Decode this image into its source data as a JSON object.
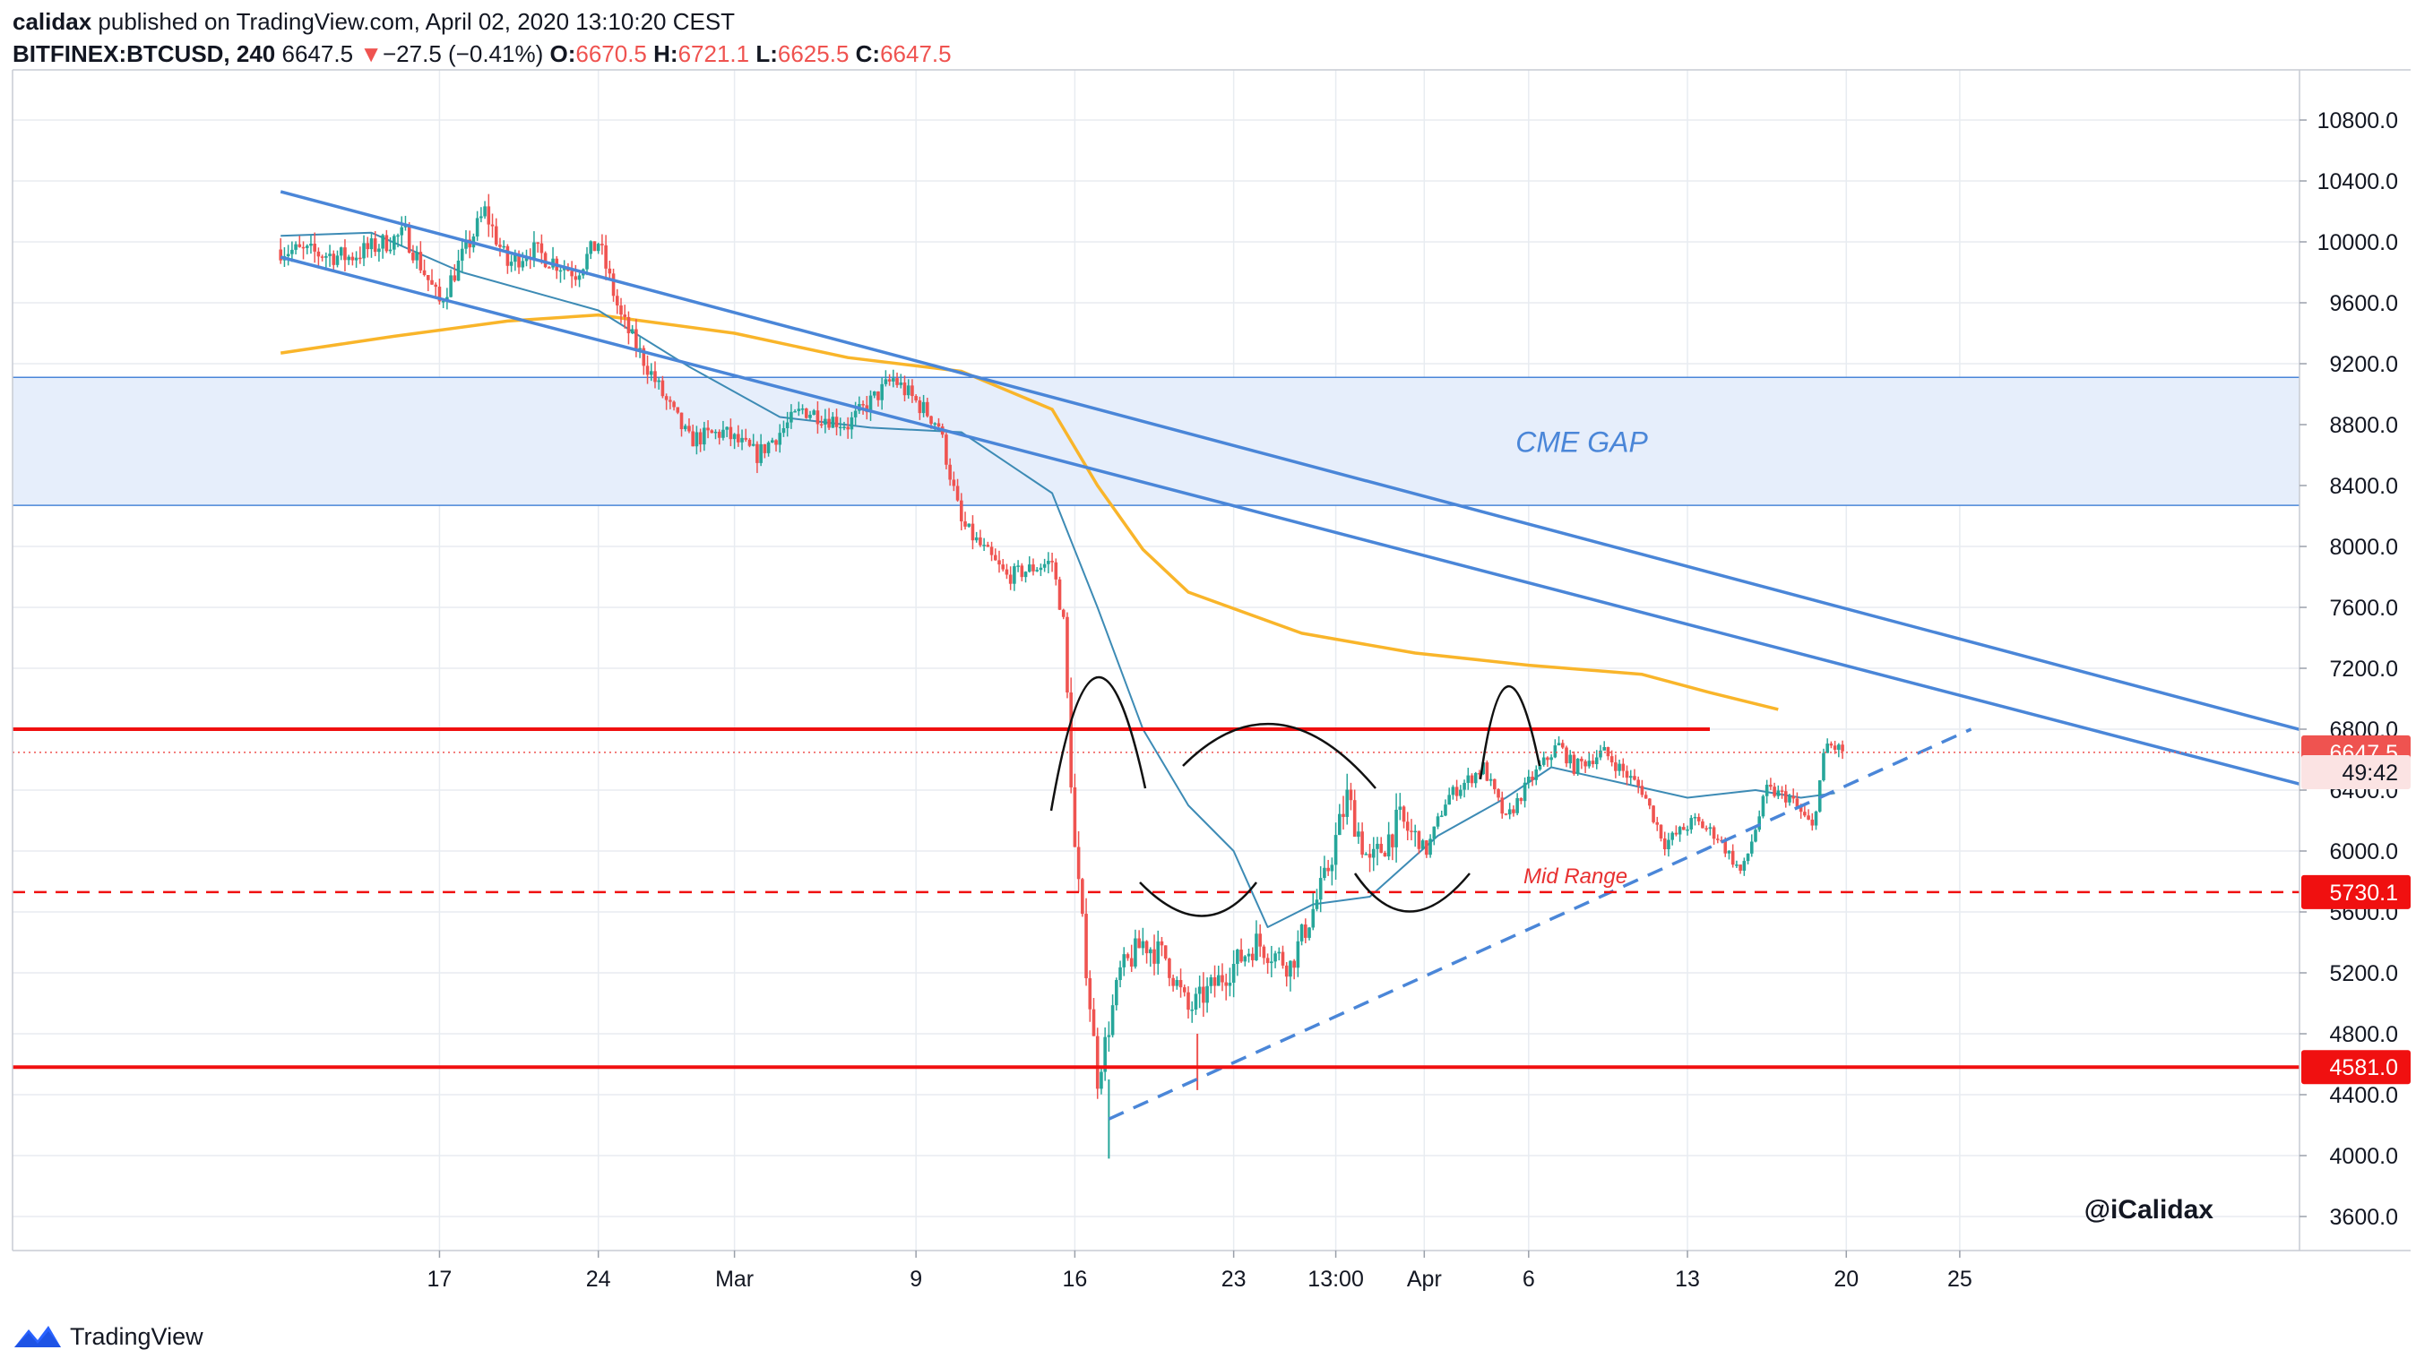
{
  "header": {
    "author": "calidax",
    "published_text": "published on TradingView.com, April 02, 2020 13:10:20 CEST",
    "symbol": "BITFINEX:BTCUSD, 240",
    "last": "6647.5",
    "change_arrow": "▼",
    "change": "−27.5 (−0.41%)",
    "open_label": "O:",
    "open": "6670.5",
    "high_label": "H:",
    "high": "6721.1",
    "low_label": "L:",
    "low": "6625.5",
    "close_label": "C:",
    "close": "6647.5"
  },
  "footer": {
    "brand": "TradingView",
    "icon": "tradingview-logo-icon"
  },
  "colors": {
    "up": "#26a69a",
    "down": "#ef5350",
    "trend": "#4a86d8",
    "ma_slow": "#f9b52a",
    "ma_fast": "#3d8bb5",
    "gap_fill": "#e6eefb",
    "level": "#f01010",
    "grid": "#e8ecf1"
  },
  "chart_data": {
    "type": "candlestick",
    "y_axis": {
      "min": 3400,
      "max": 11100,
      "ticks": [
        3600,
        4000,
        4400,
        4800,
        5200,
        5600,
        6000,
        6400,
        6800,
        7200,
        7600,
        8000,
        8400,
        8800,
        9200,
        9600,
        10000,
        10400,
        10800
      ],
      "tick_labels": [
        "3600.0",
        "4000.0",
        "4400.0",
        "4800.0",
        "5200.0",
        "5600.0",
        "6000.0",
        "6400.0",
        "6800.0",
        "7200.0",
        "7600.0",
        "8000.0",
        "8400.0",
        "8800.0",
        "9200.0",
        "9600.0",
        "10000.0",
        "10400.0",
        "10800.0"
      ]
    },
    "x_axis": {
      "tick_labels": [
        "17",
        "24",
        "Mar",
        "9",
        "16",
        "23",
        "13:00",
        "Apr",
        "6",
        "13",
        "20",
        "25"
      ],
      "tick_days": [
        17,
        24,
        30,
        38,
        45,
        52,
        56.5,
        60.4,
        65,
        72,
        79,
        84
      ]
    },
    "price_path": [
      [
        10,
        9950
      ],
      [
        13,
        9900
      ],
      [
        15.5,
        10050
      ],
      [
        17,
        9600
      ],
      [
        19,
        10200
      ],
      [
        20,
        9850
      ],
      [
        21,
        9950
      ],
      [
        23,
        9800
      ],
      [
        24,
        10000
      ],
      [
        25,
        9500
      ],
      [
        27,
        8950
      ],
      [
        28,
        8700
      ],
      [
        29.5,
        8750
      ],
      [
        31,
        8600
      ],
      [
        33,
        8900
      ],
      [
        35,
        8800
      ],
      [
        37,
        9100
      ],
      [
        39,
        8800
      ],
      [
        40,
        8150
      ],
      [
        42,
        7800
      ],
      [
        44,
        7900
      ],
      [
        44.5,
        7500
      ],
      [
        45,
        6000
      ],
      [
        46,
        4500
      ],
      [
        47,
        5200
      ],
      [
        48,
        5400
      ],
      [
        49,
        5300
      ],
      [
        50,
        4950
      ],
      [
        51,
        5100
      ],
      [
        53,
        5400
      ],
      [
        54.5,
        5250
      ],
      [
        56,
        5800
      ],
      [
        57,
        6350
      ],
      [
        58,
        5900
      ],
      [
        59.3,
        6200
      ],
      [
        60.5,
        6000
      ],
      [
        61.4,
        6350
      ],
      [
        63,
        6550
      ],
      [
        64,
        6200
      ],
      [
        65,
        6450
      ],
      [
        66.3,
        6700
      ],
      [
        67,
        6550
      ],
      [
        68.3,
        6650
      ],
      [
        70,
        6400
      ],
      [
        71,
        6050
      ],
      [
        72.3,
        6200
      ],
      [
        73.3,
        6100
      ],
      [
        74.4,
        5850
      ],
      [
        75.5,
        6400
      ],
      [
        76.5,
        6350
      ],
      [
        77.5,
        6150
      ],
      [
        78.1,
        6700
      ],
      [
        79,
        6650
      ]
    ],
    "last_price": 6647.5,
    "price_labels": [
      "6647.5",
      "49:42",
      "5730.1",
      "4581.0"
    ],
    "levels": [
      {
        "name": "resistance",
        "value": 6800,
        "style": "solid"
      },
      {
        "name": "mid-range",
        "value": 5730.1,
        "style": "dashed",
        "label": "Mid Range"
      },
      {
        "name": "support",
        "value": 4581.0,
        "style": "solid"
      }
    ],
    "cme_gap": {
      "from": 8270,
      "to": 9110,
      "label": "CME GAP"
    },
    "trendlines": [
      {
        "name": "upper-channel",
        "from": [
          10,
          10330
        ],
        "to": [
          109,
          6400
        ],
        "style": "solid"
      },
      {
        "name": "lower-channel",
        "from": [
          10,
          9900
        ],
        "to": [
          109,
          6050
        ],
        "style": "solid"
      },
      {
        "name": "ascending-support",
        "from": [
          46.5,
          4240
        ],
        "to": [
          84.5,
          6800
        ],
        "style": "dashed"
      }
    ],
    "ma_slow": [
      [
        10,
        9270
      ],
      [
        15,
        9380
      ],
      [
        20,
        9480
      ],
      [
        24,
        9520
      ],
      [
        30,
        9400
      ],
      [
        35,
        9240
      ],
      [
        40,
        9150
      ],
      [
        44,
        8900
      ],
      [
        46,
        8400
      ],
      [
        48,
        7980
      ],
      [
        50,
        7700
      ],
      [
        55,
        7430
      ],
      [
        60,
        7300
      ],
      [
        65,
        7220
      ],
      [
        70,
        7160
      ],
      [
        73,
        7040
      ],
      [
        76,
        6930
      ]
    ],
    "ma_fast": [
      [
        10,
        10040
      ],
      [
        14,
        10060
      ],
      [
        18,
        9800
      ],
      [
        24,
        9550
      ],
      [
        28,
        9180
      ],
      [
        32,
        8850
      ],
      [
        36,
        8780
      ],
      [
        40,
        8750
      ],
      [
        44,
        8350
      ],
      [
        46,
        7600
      ],
      [
        48,
        6800
      ],
      [
        50,
        6300
      ],
      [
        52,
        6000
      ],
      [
        53.5,
        5500
      ],
      [
        55.5,
        5650
      ],
      [
        58,
        5700
      ],
      [
        61,
        6100
      ],
      [
        64,
        6350
      ],
      [
        66,
        6550
      ],
      [
        69,
        6450
      ],
      [
        72,
        6350
      ],
      [
        75,
        6400
      ],
      [
        77,
        6350
      ],
      [
        78.5,
        6380
      ]
    ],
    "annotation": "@iCalidax"
  }
}
